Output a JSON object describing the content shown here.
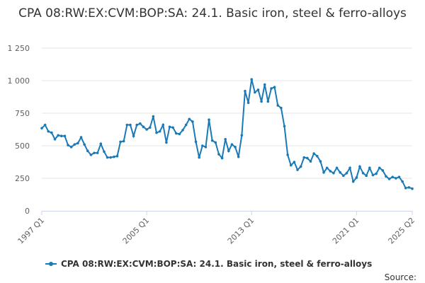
{
  "chart_data": {
    "type": "line",
    "title": "CPA 08:RW:EX:CVM:BOP:SA: 24.1. Basic iron, steel & ferro-alloys",
    "xlabel": "",
    "ylabel": "",
    "x_tick_labels": [
      "1997 Q1",
      "2005 Q1",
      "2013 Q1",
      "2021 Q1",
      "2025 Q2"
    ],
    "y_tick_labels": [
      "0",
      "250",
      "500",
      "750",
      "1 000",
      "1 250"
    ],
    "ylim": [
      0,
      1250
    ],
    "grid": "horizontal",
    "legend_position": "bottom",
    "colors": {
      "series": "#1a7ab8",
      "grid": "#e6e6e6",
      "axis": "#ccd6eb"
    },
    "x": [
      "1997 Q1",
      "1997 Q2",
      "1997 Q3",
      "1997 Q4",
      "1998 Q1",
      "1998 Q2",
      "1998 Q3",
      "1998 Q4",
      "1999 Q1",
      "1999 Q2",
      "1999 Q3",
      "1999 Q4",
      "2000 Q1",
      "2000 Q2",
      "2000 Q3",
      "2000 Q4",
      "2001 Q1",
      "2001 Q2",
      "2001 Q3",
      "2001 Q4",
      "2002 Q1",
      "2002 Q2",
      "2002 Q3",
      "2002 Q4",
      "2003 Q1",
      "2003 Q2",
      "2003 Q3",
      "2003 Q4",
      "2004 Q1",
      "2004 Q2",
      "2004 Q3",
      "2004 Q4",
      "2005 Q1",
      "2005 Q2",
      "2005 Q3",
      "2005 Q4",
      "2006 Q1",
      "2006 Q2",
      "2006 Q3",
      "2006 Q4",
      "2007 Q1",
      "2007 Q2",
      "2007 Q3",
      "2007 Q4",
      "2008 Q1",
      "2008 Q2",
      "2008 Q3",
      "2008 Q4",
      "2009 Q1",
      "2009 Q2",
      "2009 Q3",
      "2009 Q4",
      "2010 Q1",
      "2010 Q2",
      "2010 Q3",
      "2010 Q4",
      "2011 Q1",
      "2011 Q2",
      "2011 Q3",
      "2011 Q4",
      "2012 Q1",
      "2012 Q2",
      "2012 Q3",
      "2012 Q4",
      "2013 Q1",
      "2013 Q2",
      "2013 Q3",
      "2013 Q4",
      "2014 Q1",
      "2014 Q2",
      "2014 Q3",
      "2014 Q4",
      "2015 Q1",
      "2015 Q2",
      "2015 Q3",
      "2015 Q4",
      "2016 Q1",
      "2016 Q2",
      "2016 Q3",
      "2016 Q4",
      "2017 Q1",
      "2017 Q2",
      "2017 Q3",
      "2017 Q4",
      "2018 Q1",
      "2018 Q2",
      "2018 Q3",
      "2018 Q4",
      "2019 Q1",
      "2019 Q2",
      "2019 Q3",
      "2019 Q4",
      "2020 Q1",
      "2020 Q2",
      "2020 Q3",
      "2020 Q4",
      "2021 Q1",
      "2021 Q2",
      "2021 Q3",
      "2021 Q4",
      "2022 Q1",
      "2022 Q2",
      "2022 Q3",
      "2022 Q4",
      "2023 Q1",
      "2023 Q2",
      "2023 Q3",
      "2023 Q4",
      "2024 Q1",
      "2024 Q2",
      "2024 Q3",
      "2024 Q4",
      "2025 Q1",
      "2025 Q2"
    ],
    "series": [
      {
        "name": "CPA 08:RW:EX:CVM:BOP:SA: 24.1. Basic iron, steel & ferro-alloys",
        "values": [
          635,
          660,
          610,
          600,
          550,
          580,
          575,
          575,
          505,
          490,
          510,
          520,
          565,
          510,
          460,
          430,
          445,
          445,
          515,
          455,
          410,
          410,
          415,
          420,
          530,
          535,
          660,
          660,
          575,
          660,
          670,
          645,
          625,
          640,
          725,
          600,
          610,
          660,
          525,
          645,
          640,
          595,
          590,
          620,
          660,
          705,
          685,
          530,
          410,
          500,
          490,
          700,
          540,
          525,
          435,
          405,
          550,
          460,
          510,
          490,
          415,
          580,
          920,
          830,
          1010,
          910,
          930,
          840,
          970,
          840,
          940,
          950,
          810,
          790,
          650,
          430,
          350,
          375,
          315,
          340,
          410,
          405,
          380,
          440,
          420,
          380,
          295,
          330,
          305,
          290,
          330,
          295,
          270,
          290,
          330,
          225,
          255,
          340,
          290,
          270,
          330,
          275,
          285,
          330,
          310,
          265,
          245,
          260,
          250,
          260,
          225,
          175,
          180,
          170
        ]
      }
    ],
    "source_label": "Source:"
  }
}
